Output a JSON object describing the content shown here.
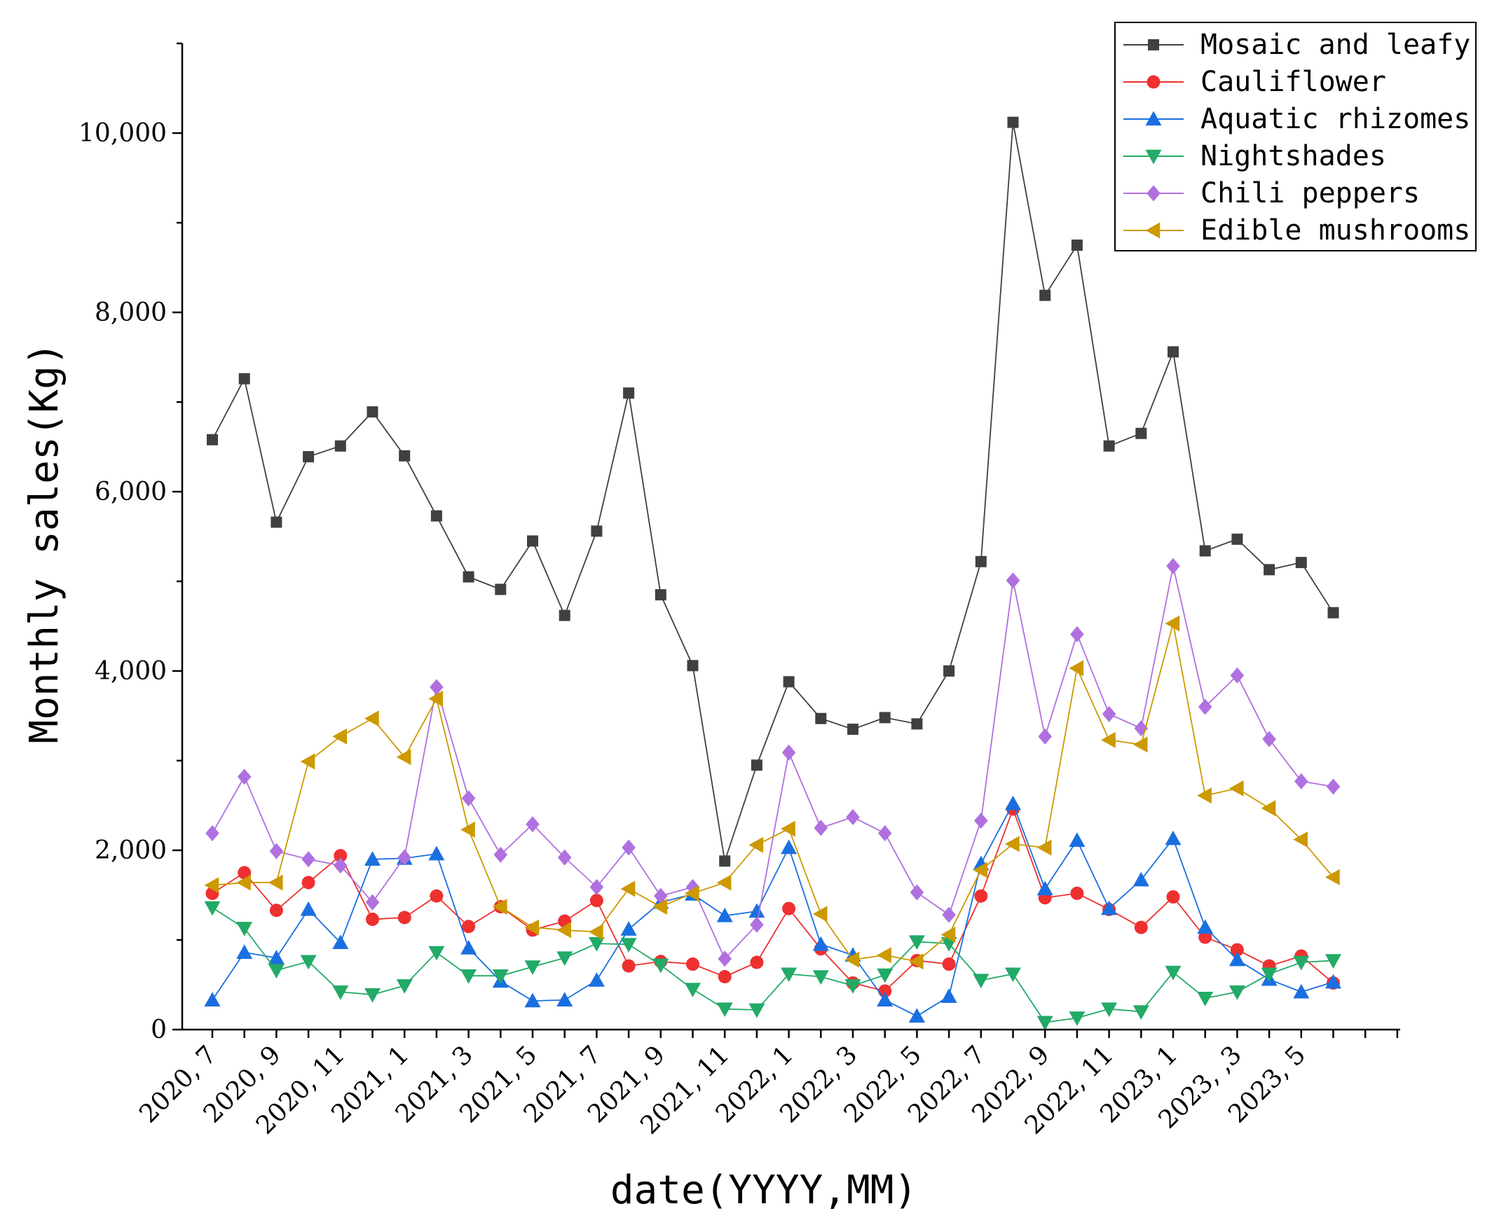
{
  "chart_data": {
    "type": "line",
    "title": "",
    "xlabel": "date(YYYY,MM)",
    "ylabel": "Monthly sales(Kg)",
    "ylim": [
      0,
      11000
    ],
    "yticks": [
      0,
      2000,
      4000,
      6000,
      8000,
      10000
    ],
    "ytick_labels": [
      "0",
      "2,000",
      "4,000",
      "6,000",
      "8,000",
      "10,000"
    ],
    "x_tick_labels": [
      "2020, 7",
      "2020, 9",
      "2020, 11",
      "2021, 1",
      "2021, 3",
      "2021, 5",
      "2021, 7",
      "2021, 9",
      "2021, 11",
      "2022, 1",
      "2022, 3",
      "2022, 5",
      "2022, 7",
      "2022, 9",
      "2022, 11",
      "2023, 1",
      "2023, ,3",
      "2023, 5"
    ],
    "categories": [
      "2020-07",
      "2020-08",
      "2020-09",
      "2020-10",
      "2020-11",
      "2020-12",
      "2021-01",
      "2021-02",
      "2021-03",
      "2021-04",
      "2021-05",
      "2021-06",
      "2021-07",
      "2021-08",
      "2021-09",
      "2021-10",
      "2021-11",
      "2021-12",
      "2022-01",
      "2022-02",
      "2022-03",
      "2022-04",
      "2022-05",
      "2022-06",
      "2022-07",
      "2022-08",
      "2022-09",
      "2022-10",
      "2022-11",
      "2022-12",
      "2023-01",
      "2023-02",
      "2023-03",
      "2023-04",
      "2023-05",
      "2023-06"
    ],
    "legend_position": "top-right",
    "series": [
      {
        "name": "Mosaic and leafy",
        "color": "#404040",
        "marker": "square",
        "values": [
          6580,
          7260,
          5660,
          6390,
          6510,
          6890,
          6400,
          5730,
          5050,
          4910,
          5450,
          4620,
          5560,
          7100,
          4850,
          4060,
          1880,
          2950,
          3880,
          3470,
          3350,
          3480,
          3410,
          4000,
          5220,
          10120,
          8190,
          8750,
          6510,
          6650,
          7560,
          5340,
          5470,
          5130,
          5210,
          4650
        ]
      },
      {
        "name": "Cauliflower",
        "color": "#ee3030",
        "marker": "circle",
        "values": [
          1520,
          1750,
          1330,
          1640,
          1940,
          1230,
          1250,
          1490,
          1150,
          1370,
          1110,
          1210,
          1440,
          710,
          760,
          730,
          590,
          750,
          1350,
          900,
          520,
          430,
          770,
          730,
          1490,
          2460,
          1470,
          1520,
          1340,
          1140,
          1480,
          1030,
          890,
          710,
          820,
          520
        ]
      },
      {
        "name": "Aquatic rhizomes",
        "color": "#1a6fe0",
        "marker": "triangle-up",
        "values": [
          330,
          860,
          800,
          1340,
          970,
          1900,
          1910,
          1960,
          910,
          540,
          320,
          330,
          550,
          1120,
          1420,
          1510,
          1270,
          1320,
          2030,
          950,
          830,
          330,
          150,
          370,
          1850,
          2520,
          1570,
          2110,
          1350,
          1670,
          2130,
          1140,
          780,
          560,
          420,
          530
        ]
      },
      {
        "name": "Nightshades",
        "color": "#22aa66",
        "marker": "triangle-down",
        "values": [
          1360,
          1130,
          660,
          760,
          420,
          390,
          490,
          860,
          600,
          600,
          700,
          800,
          960,
          950,
          720,
          450,
          230,
          220,
          620,
          590,
          490,
          610,
          980,
          960,
          550,
          620,
          80,
          130,
          230,
          200,
          640,
          350,
          420,
          620,
          750,
          770
        ]
      },
      {
        "name": "Chili peppers",
        "color": "#b070e0",
        "marker": "diamond",
        "values": [
          2190,
          2820,
          1990,
          1900,
          1830,
          1420,
          1920,
          3820,
          2580,
          1950,
          2290,
          1920,
          1590,
          2030,
          1490,
          1590,
          790,
          1170,
          3090,
          2250,
          2370,
          2190,
          1530,
          1280,
          2330,
          5010,
          3270,
          4410,
          3520,
          3360,
          5170,
          3600,
          3950,
          3240,
          2770,
          2710
        ]
      },
      {
        "name": "Edible mushrooms",
        "color": "#cc9900",
        "marker": "triangle-left",
        "values": [
          1610,
          1640,
          1640,
          2990,
          3270,
          3470,
          3040,
          3690,
          2230,
          1370,
          1140,
          1110,
          1090,
          1570,
          1370,
          1520,
          1640,
          2060,
          2240,
          1290,
          780,
          830,
          760,
          1060,
          1780,
          2070,
          2030,
          4030,
          3230,
          3180,
          4530,
          2610,
          2690,
          2470,
          2120,
          1700
        ]
      }
    ]
  }
}
